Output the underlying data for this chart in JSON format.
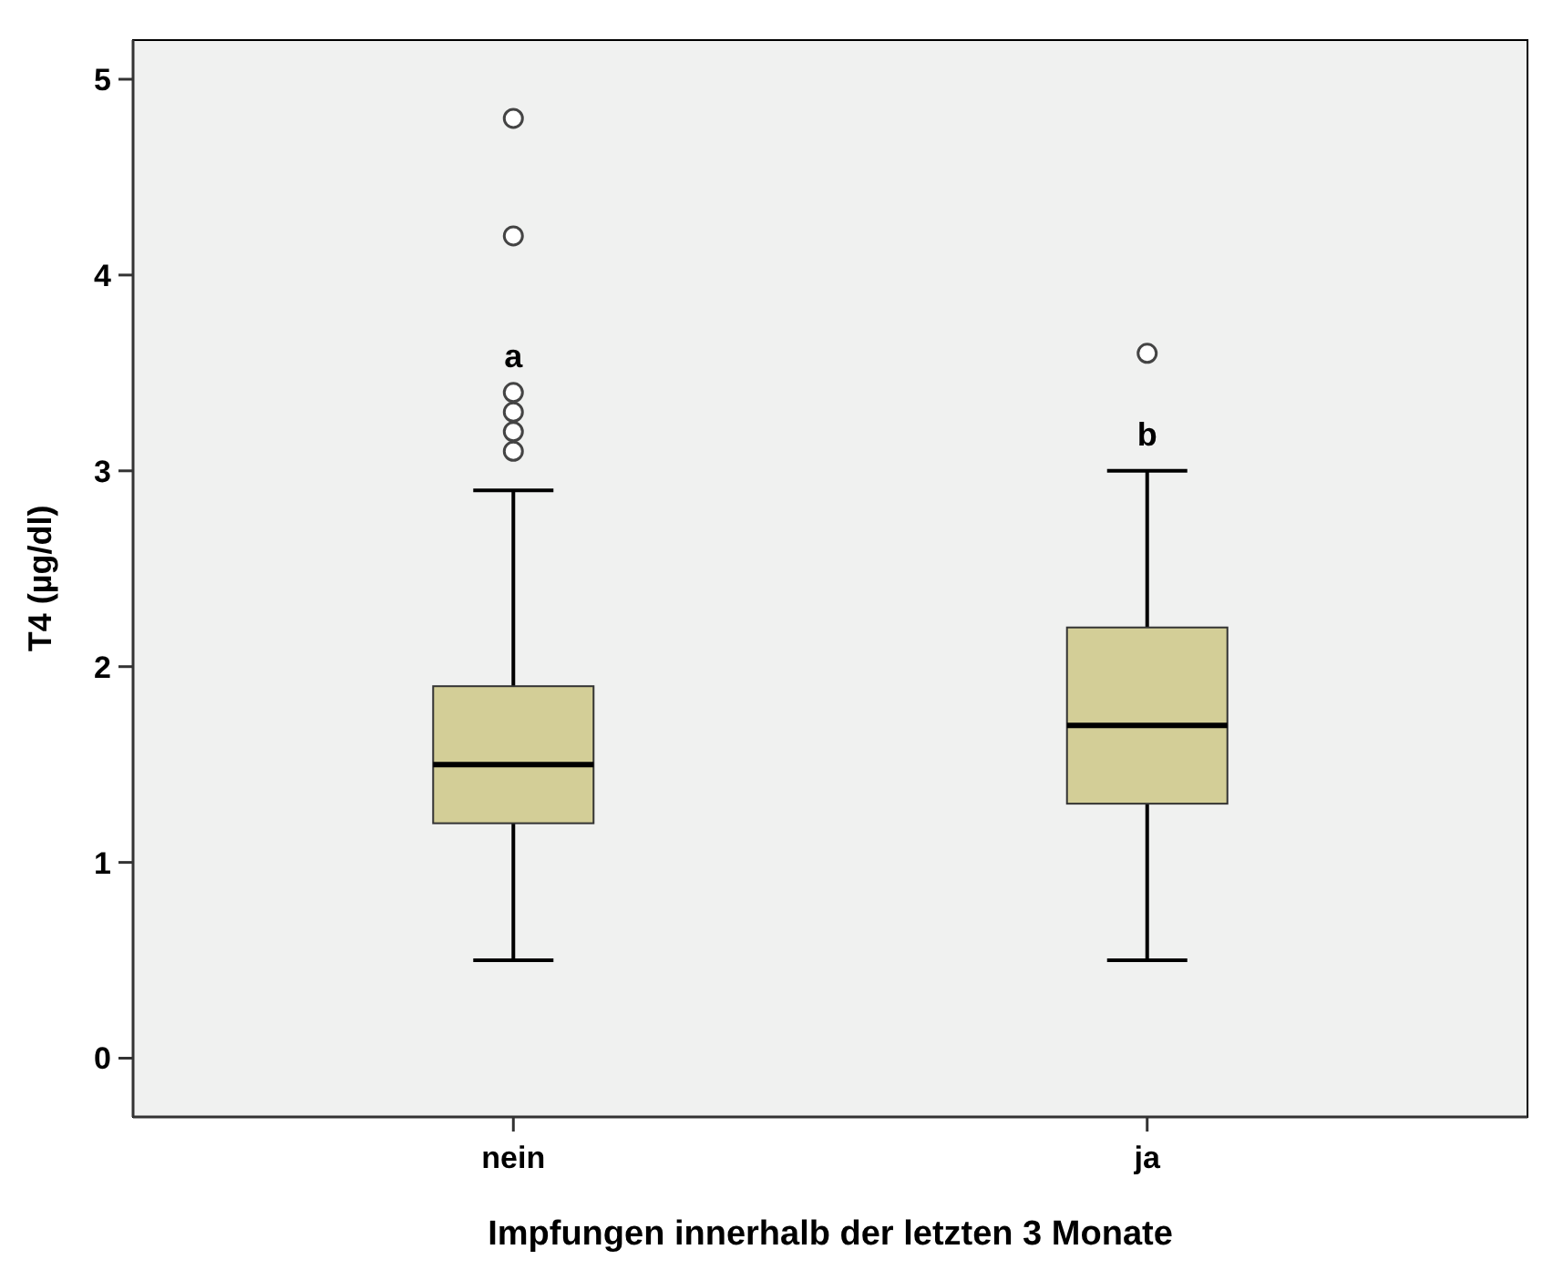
{
  "chart_data": {
    "type": "box",
    "xlabel": "Impfungen innerhalb der letzten 3 Monate",
    "ylabel": "T4 (µg/dl)",
    "categories": [
      "nein",
      "ja"
    ],
    "color": "#d3ce97",
    "boxes": [
      {
        "low": 0.5,
        "q1": 1.2,
        "median": 1.5,
        "q3": 1.9,
        "high": 2.9,
        "outliers": [
          4.8,
          4.2,
          3.4,
          3.3,
          3.2,
          3.1
        ]
      },
      {
        "low": 0.5,
        "q1": 1.3,
        "median": 1.7,
        "q3": 2.2,
        "high": 3.0,
        "outliers": [
          3.6
        ]
      }
    ],
    "ylim": [
      -0.3,
      5.2
    ],
    "yticks": [
      0,
      1,
      2,
      3,
      4,
      5
    ],
    "grid": false,
    "annotations": [
      "a",
      "b"
    ]
  }
}
